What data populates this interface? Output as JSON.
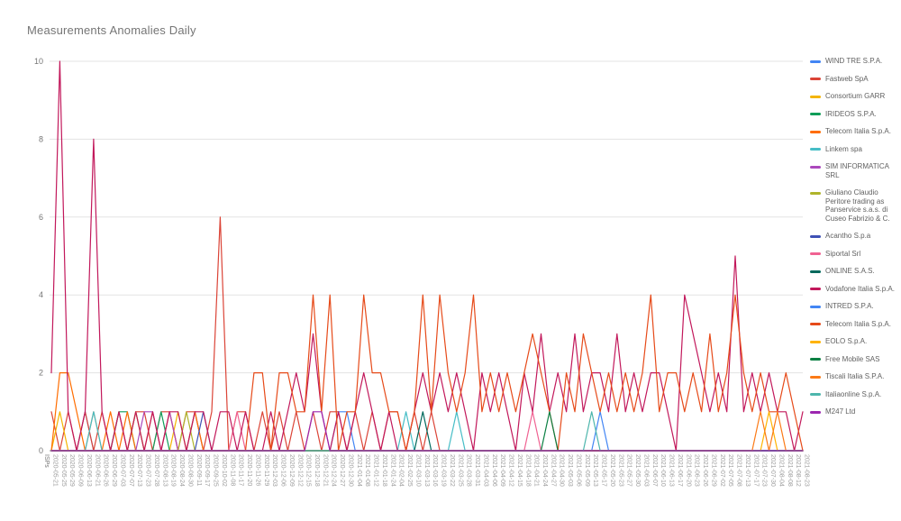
{
  "chart_data": {
    "type": "line",
    "title": "Measurements Anomalies Daily",
    "xlabel": "ISPs",
    "ylabel": "",
    "ylim": [
      0,
      10
    ],
    "yticks": [
      0,
      2,
      4,
      6,
      8,
      10
    ],
    "grid": true,
    "legend_position": "right",
    "axis_colors": {
      "tick_label": "#9e9e9e",
      "y_label": "#757575",
      "gridline": "#e3e3e3",
      "baseline": "#9e9e9e",
      "title": "#757575",
      "legend_text": "#616161"
    },
    "categories": [
      "2020-05-21",
      "2020-05-25",
      "2020-05-29",
      "2020-06-09",
      "2020-06-13",
      "2020-06-21",
      "2020-06-26",
      "2020-06-29",
      "2020-07-03",
      "2020-07-07",
      "2020-07-13",
      "2020-07-23",
      "2020-07-28",
      "2020-08-13",
      "2020-08-19",
      "2020-08-24",
      "2020-08-30",
      "2020-09-11",
      "2020-09-17",
      "2020-09-25",
      "2020-10-02",
      "2020-11-08",
      "2020-11-17",
      "2020-11-20",
      "2020-11-26",
      "2020-11-29",
      "2020-12-03",
      "2020-12-06",
      "2020-12-09",
      "2020-12-12",
      "2020-12-15",
      "2020-12-18",
      "2020-12-21",
      "2020-12-24",
      "2020-12-27",
      "2020-12-30",
      "2021-01-04",
      "2021-01-08",
      "2021-01-12",
      "2021-01-18",
      "2021-01-24",
      "2021-02-04",
      "2021-02-25",
      "2021-03-10",
      "2021-03-13",
      "2021-03-16",
      "2021-03-19",
      "2021-03-22",
      "2021-03-25",
      "2021-03-28",
      "2021-03-31",
      "2021-04-03",
      "2021-04-06",
      "2021-04-09",
      "2021-04-12",
      "2021-04-15",
      "2021-04-18",
      "2021-04-21",
      "2021-04-24",
      "2021-04-27",
      "2021-04-30",
      "2021-05-03",
      "2021-05-06",
      "2021-05-09",
      "2021-05-13",
      "2021-05-17",
      "2021-05-20",
      "2021-05-23",
      "2021-05-27",
      "2021-05-30",
      "2021-06-03",
      "2021-06-07",
      "2021-06-10",
      "2021-06-13",
      "2021-06-17",
      "2021-06-20",
      "2021-06-23",
      "2021-06-26",
      "2021-06-29",
      "2021-07-02",
      "2021-07-05",
      "2021-07-08",
      "2021-07-13",
      "2021-07-17",
      "2021-07-23",
      "2021-07-30",
      "2021-08-04",
      "2021-08-08",
      "2021-08-12",
      "2021-08-23"
    ],
    "series": [
      {
        "name": "WIND TRE S.P.A.",
        "color": "#4285F4",
        "points": [
          [
            4,
            1
          ],
          [
            17,
            1
          ],
          [
            34,
            1
          ],
          [
            35,
            1
          ]
        ]
      },
      {
        "name": "Fastweb SpA",
        "color": "#DB4437",
        "points": [
          [
            0,
            1
          ],
          [
            2,
            1
          ],
          [
            4,
            1
          ],
          [
            6,
            1
          ],
          [
            8,
            1
          ],
          [
            10,
            1
          ],
          [
            11,
            1
          ],
          [
            13,
            1
          ],
          [
            14,
            1
          ],
          [
            16,
            1
          ],
          [
            17,
            1
          ],
          [
            19,
            1
          ],
          [
            20,
            6
          ],
          [
            22,
            1
          ],
          [
            23,
            1
          ],
          [
            25,
            1
          ],
          [
            27,
            1
          ],
          [
            29,
            1
          ],
          [
            31,
            1
          ],
          [
            33,
            1
          ],
          [
            34,
            1
          ],
          [
            36,
            1
          ],
          [
            38,
            1
          ],
          [
            40,
            1
          ],
          [
            41,
            1
          ],
          [
            43,
            1
          ],
          [
            45,
            1
          ]
        ]
      },
      {
        "name": "Consortium GARR",
        "color": "#F4B400",
        "points": [
          [
            1,
            1
          ],
          [
            10,
            1
          ],
          [
            15,
            1
          ]
        ]
      },
      {
        "name": "IRIDEOS S.P.A.",
        "color": "#0F9D58",
        "points": [
          [
            8,
            1
          ],
          [
            9,
            1
          ],
          [
            13,
            1
          ]
        ]
      },
      {
        "name": "Telecom Italia S.p.A.",
        "color": "#FF6D00",
        "points": [
          [
            1,
            2
          ],
          [
            2,
            2
          ],
          [
            3,
            1
          ],
          [
            5,
            1
          ],
          [
            7,
            1
          ],
          [
            9,
            1
          ],
          [
            12,
            1
          ],
          [
            14,
            1
          ],
          [
            17,
            1
          ]
        ]
      },
      {
        "name": "Linkem spa",
        "color": "#46BDC6",
        "points": [
          [
            5,
            1
          ],
          [
            42,
            1
          ],
          [
            48,
            1
          ]
        ]
      },
      {
        "name": "SIM INFORMATICA SRL",
        "color": "#AB47BC",
        "points": [
          [
            11,
            1
          ],
          [
            12,
            1
          ],
          [
            14,
            1
          ]
        ]
      },
      {
        "name": "Giuliano Claudio Peritore trading as Panservice s.a.s. di Cuseo Fabrizio & C.",
        "color": "#AFB42B",
        "points": [
          [
            10,
            1
          ],
          [
            16,
            1
          ]
        ]
      },
      {
        "name": "Acantho S.p.a",
        "color": "#3F51B5",
        "points": [
          [
            18,
            1
          ]
        ]
      },
      {
        "name": "Siportal Srl",
        "color": "#F06292",
        "points": [
          [
            22,
            1
          ],
          [
            57,
            1
          ]
        ]
      },
      {
        "name": "ONLINE S.A.S.",
        "color": "#00695C",
        "points": [
          [
            44,
            1
          ]
        ]
      },
      {
        "name": "Vodafone Italia S.p.A.",
        "color": "#C2185B",
        "points": [
          [
            0,
            2
          ],
          [
            1,
            10
          ],
          [
            2,
            1
          ],
          [
            4,
            1
          ],
          [
            5,
            8
          ],
          [
            6,
            1
          ],
          [
            8,
            1
          ],
          [
            10,
            1
          ],
          [
            12,
            1
          ],
          [
            14,
            1
          ],
          [
            15,
            1
          ],
          [
            17,
            1
          ],
          [
            18,
            1
          ],
          [
            20,
            1
          ],
          [
            21,
            1
          ],
          [
            23,
            1
          ],
          [
            26,
            1
          ],
          [
            28,
            1
          ],
          [
            29,
            2
          ],
          [
            30,
            1
          ],
          [
            31,
            3
          ],
          [
            32,
            1
          ],
          [
            34,
            1
          ],
          [
            36,
            1
          ],
          [
            37,
            2
          ],
          [
            38,
            1
          ],
          [
            40,
            1
          ],
          [
            43,
            1
          ],
          [
            44,
            2
          ],
          [
            45,
            1
          ],
          [
            46,
            2
          ],
          [
            47,
            1
          ],
          [
            48,
            2
          ],
          [
            49,
            1
          ],
          [
            51,
            2
          ],
          [
            52,
            1
          ],
          [
            53,
            2
          ],
          [
            54,
            1
          ],
          [
            56,
            2
          ],
          [
            57,
            1
          ],
          [
            58,
            3
          ],
          [
            59,
            1
          ],
          [
            60,
            2
          ],
          [
            61,
            1
          ],
          [
            62,
            3
          ],
          [
            63,
            1
          ],
          [
            64,
            2
          ],
          [
            65,
            2
          ],
          [
            66,
            1
          ],
          [
            67,
            3
          ],
          [
            68,
            1
          ],
          [
            69,
            2
          ],
          [
            70,
            1
          ],
          [
            71,
            2
          ],
          [
            72,
            2
          ],
          [
            73,
            1
          ],
          [
            75,
            4
          ],
          [
            76,
            3
          ],
          [
            77,
            2
          ],
          [
            78,
            1
          ],
          [
            79,
            2
          ],
          [
            80,
            1
          ],
          [
            81,
            5
          ],
          [
            82,
            1
          ],
          [
            83,
            2
          ],
          [
            84,
            1
          ],
          [
            85,
            2
          ],
          [
            86,
            1
          ],
          [
            87,
            1
          ],
          [
            89,
            1
          ]
        ]
      },
      {
        "name": "INTRED S.P.A.",
        "color": "#4285F4",
        "points": [
          [
            65,
            1
          ]
        ]
      },
      {
        "name": "Telecom Italia S.p.A.",
        "color": "#E64A19",
        "points": [
          [
            24,
            2
          ],
          [
            25,
            2
          ],
          [
            27,
            2
          ],
          [
            28,
            2
          ],
          [
            29,
            1
          ],
          [
            30,
            1
          ],
          [
            31,
            4
          ],
          [
            32,
            1
          ],
          [
            33,
            4
          ],
          [
            35,
            1
          ],
          [
            36,
            1
          ],
          [
            37,
            4
          ],
          [
            38,
            2
          ],
          [
            39,
            2
          ],
          [
            40,
            1
          ],
          [
            41,
            1
          ],
          [
            43,
            1
          ],
          [
            44,
            4
          ],
          [
            45,
            1
          ],
          [
            46,
            4
          ],
          [
            47,
            2
          ],
          [
            48,
            1
          ],
          [
            49,
            2
          ],
          [
            50,
            4
          ],
          [
            51,
            1
          ],
          [
            52,
            2
          ],
          [
            53,
            1
          ],
          [
            54,
            2
          ],
          [
            55,
            1
          ],
          [
            56,
            2
          ],
          [
            57,
            3
          ],
          [
            58,
            2
          ],
          [
            59,
            1
          ],
          [
            61,
            2
          ],
          [
            62,
            1
          ],
          [
            63,
            3
          ],
          [
            64,
            2
          ],
          [
            65,
            1
          ],
          [
            66,
            2
          ],
          [
            67,
            1
          ],
          [
            68,
            2
          ],
          [
            69,
            1
          ],
          [
            70,
            2
          ],
          [
            71,
            4
          ],
          [
            72,
            1
          ],
          [
            73,
            2
          ],
          [
            74,
            2
          ],
          [
            75,
            1
          ],
          [
            76,
            2
          ],
          [
            77,
            1
          ],
          [
            78,
            3
          ],
          [
            79,
            1
          ],
          [
            80,
            2
          ],
          [
            81,
            4
          ],
          [
            82,
            2
          ],
          [
            83,
            1
          ],
          [
            84,
            2
          ],
          [
            85,
            1
          ],
          [
            86,
            1
          ],
          [
            87,
            2
          ],
          [
            88,
            1
          ]
        ]
      },
      {
        "name": "EOLO S.p.A.",
        "color": "#FFB300",
        "points": [
          [
            85,
            1
          ]
        ]
      },
      {
        "name": "Free Mobile SAS",
        "color": "#0B8043",
        "points": [
          [
            59,
            1
          ]
        ]
      },
      {
        "name": "Tiscali Italia S.P.A.",
        "color": "#FB7A17",
        "points": [
          [
            84,
            1
          ],
          [
            86,
            1
          ]
        ]
      },
      {
        "name": "Italiaonline S.p.A.",
        "color": "#4DB6AC",
        "points": [
          [
            64,
            1
          ]
        ]
      },
      {
        "name": "M247 Ltd",
        "color": "#9C27B0",
        "points": [
          [
            31,
            1
          ],
          [
            32,
            1
          ]
        ]
      }
    ]
  }
}
